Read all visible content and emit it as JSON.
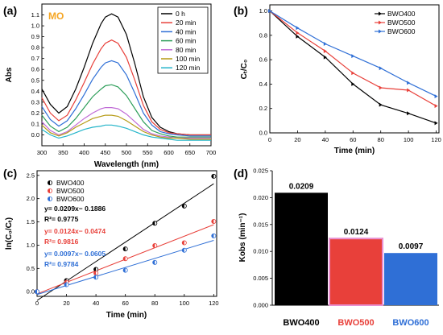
{
  "colors": {
    "axis": "#000000",
    "mo_label": "#f5a623",
    "BWO400": "#000000",
    "BWO500": "#e8403a",
    "BWO600": "#2f6fd6",
    "bar_outline_500": "#e88fd0"
  },
  "chart_data": [
    {
      "panel": "(a)",
      "type": "line",
      "annotation": "MO",
      "xlabel": "Wavelength (nm)",
      "ylabel": "Abs",
      "xlim": [
        300,
        700
      ],
      "ylim": [
        -0.1,
        1.2
      ],
      "xticks": [
        "300",
        "350",
        "400",
        "450",
        "500",
        "550",
        "600",
        "650",
        "700"
      ],
      "yticks": [
        "0.0",
        "0.1",
        "0.2",
        "0.3",
        "0.4",
        "0.5",
        "0.6",
        "0.7",
        "0.8",
        "0.9",
        "1.0",
        "1.1"
      ],
      "legend_position": "top-right",
      "series": [
        {
          "name": "0 h",
          "color": "#000000",
          "x": [
            300,
            320,
            340,
            360,
            380,
            400,
            420,
            440,
            450,
            465,
            480,
            500,
            520,
            540,
            560,
            580,
            600,
            620,
            650,
            700
          ],
          "y": [
            0.42,
            0.28,
            0.2,
            0.26,
            0.42,
            0.62,
            0.84,
            1.02,
            1.08,
            1.11,
            1.08,
            0.92,
            0.65,
            0.35,
            0.16,
            0.07,
            0.03,
            0.01,
            0.0,
            0.0
          ]
        },
        {
          "name": "20 min",
          "color": "#e8403a",
          "x": [
            300,
            320,
            340,
            360,
            380,
            400,
            420,
            440,
            450,
            465,
            480,
            500,
            520,
            540,
            560,
            580,
            600,
            620,
            650,
            700
          ],
          "y": [
            0.34,
            0.2,
            0.13,
            0.18,
            0.32,
            0.48,
            0.65,
            0.79,
            0.84,
            0.87,
            0.84,
            0.71,
            0.5,
            0.27,
            0.12,
            0.05,
            0.02,
            0.01,
            0.0,
            0.0
          ]
        },
        {
          "name": "40 min",
          "color": "#2f6fd6",
          "x": [
            300,
            320,
            340,
            360,
            380,
            400,
            420,
            440,
            450,
            465,
            480,
            500,
            520,
            540,
            560,
            580,
            600,
            620,
            650,
            700
          ],
          "y": [
            0.26,
            0.14,
            0.08,
            0.13,
            0.24,
            0.37,
            0.51,
            0.62,
            0.66,
            0.68,
            0.66,
            0.55,
            0.38,
            0.2,
            0.09,
            0.03,
            0.01,
            0.0,
            -0.01,
            -0.01
          ]
        },
        {
          "name": "60 min",
          "color": "#2e9e5a",
          "x": [
            300,
            320,
            340,
            360,
            380,
            400,
            420,
            440,
            450,
            465,
            480,
            500,
            520,
            540,
            560,
            580,
            600,
            620,
            650,
            700
          ],
          "y": [
            0.18,
            0.08,
            0.03,
            0.07,
            0.15,
            0.25,
            0.35,
            0.42,
            0.45,
            0.46,
            0.44,
            0.36,
            0.24,
            0.12,
            0.04,
            0.01,
            -0.01,
            -0.02,
            -0.02,
            -0.02
          ]
        },
        {
          "name": "80 min",
          "color": "#c06bd6",
          "x": [
            300,
            320,
            340,
            360,
            380,
            400,
            420,
            440,
            450,
            465,
            480,
            500,
            520,
            540,
            560,
            580,
            600,
            620,
            650,
            700
          ],
          "y": [
            0.12,
            0.04,
            0.0,
            0.03,
            0.09,
            0.15,
            0.2,
            0.24,
            0.25,
            0.25,
            0.24,
            0.19,
            0.12,
            0.05,
            0.01,
            -0.01,
            -0.02,
            -0.03,
            -0.03,
            -0.03
          ]
        },
        {
          "name": "100 min",
          "color": "#b59a14",
          "x": [
            300,
            320,
            340,
            360,
            380,
            400,
            420,
            440,
            450,
            465,
            480,
            500,
            520,
            540,
            560,
            580,
            600,
            620,
            650,
            700
          ],
          "y": [
            0.09,
            0.02,
            -0.01,
            0.02,
            0.07,
            0.11,
            0.15,
            0.17,
            0.18,
            0.18,
            0.17,
            0.13,
            0.08,
            0.03,
            0.0,
            -0.02,
            -0.03,
            -0.03,
            -0.04,
            -0.04
          ]
        },
        {
          "name": "120 min",
          "color": "#25b5c9",
          "x": [
            300,
            320,
            340,
            360,
            380,
            400,
            420,
            440,
            450,
            465,
            480,
            500,
            520,
            540,
            560,
            580,
            600,
            620,
            650,
            700
          ],
          "y": [
            0.05,
            0.0,
            -0.03,
            -0.01,
            0.02,
            0.05,
            0.07,
            0.08,
            0.09,
            0.09,
            0.08,
            0.06,
            0.03,
            0.0,
            -0.02,
            -0.03,
            -0.04,
            -0.05,
            -0.05,
            -0.05
          ]
        }
      ]
    },
    {
      "panel": "(b)",
      "type": "line",
      "xlabel": "Time (min)",
      "ylabel": "Cₜ/C₀",
      "xlim": [
        0,
        122
      ],
      "ylim": [
        0.0,
        1.05
      ],
      "xticks": [
        "0",
        "20",
        "40",
        "60",
        "80",
        "100",
        "120"
      ],
      "yticks": [
        "0.0",
        "0.2",
        "0.4",
        "0.6",
        "0.8",
        "1.0"
      ],
      "legend_position": "top-right",
      "x": [
        0,
        20,
        40,
        60,
        80,
        100,
        120
      ],
      "series": [
        {
          "name": "BWO400",
          "values": [
            1.0,
            0.79,
            0.62,
            0.4,
            0.23,
            0.16,
            0.08
          ]
        },
        {
          "name": "BWO500",
          "values": [
            1.0,
            0.82,
            0.67,
            0.49,
            0.37,
            0.35,
            0.22
          ]
        },
        {
          "name": "BWO600",
          "values": [
            1.0,
            0.86,
            0.73,
            0.63,
            0.53,
            0.41,
            0.3
          ]
        }
      ]
    },
    {
      "panel": "(c)",
      "type": "scatter",
      "xlabel": "Time (min)",
      "ylabel": "ln(C₀/Cₜ)",
      "xlim": [
        0,
        122
      ],
      "ylim": [
        -0.1,
        2.6
      ],
      "xticks": [
        "0",
        "20",
        "40",
        "60",
        "80",
        "100",
        "120"
      ],
      "yticks": [
        "0.0",
        "0.5",
        "1.0",
        "1.5",
        "2.0",
        "2.5"
      ],
      "legend_position": "top-left",
      "x": [
        0,
        20,
        40,
        60,
        80,
        100,
        120
      ],
      "series": [
        {
          "name": "BWO400",
          "values": [
            0.0,
            0.24,
            0.48,
            0.92,
            1.47,
            1.84,
            2.48
          ],
          "fit_slope": 0.0209,
          "fit_intercept": -0.1886,
          "equation": "y= 0.0209x− 0.1886",
          "r2": "R²= 0.9775"
        },
        {
          "name": "BWO500",
          "values": [
            0.0,
            0.2,
            0.4,
            0.71,
            0.99,
            1.05,
            1.51
          ],
          "fit_slope": 0.0124,
          "fit_intercept": -0.0474,
          "equation": "y= 0.0124x− 0.0474",
          "r2": "R²= 0.9816"
        },
        {
          "name": "BWO600",
          "values": [
            0.0,
            0.15,
            0.31,
            0.46,
            0.63,
            0.89,
            1.2
          ],
          "fit_slope": 0.0097,
          "fit_intercept": -0.0605,
          "equation": "y= 0.0097x− 0.0605",
          "r2": "R²= 0.9784"
        }
      ]
    },
    {
      "panel": "(d)",
      "type": "bar",
      "ylabel": "Kobs (min⁻¹)",
      "ylim": [
        0.0,
        0.025
      ],
      "yticks": [
        "0.000",
        "0.005",
        "0.010",
        "0.015",
        "0.020",
        "0.025"
      ],
      "categories": [
        "BWO400",
        "BWO500",
        "BWO600"
      ],
      "values": [
        0.0209,
        0.0124,
        0.0097
      ],
      "value_labels": [
        "0.0209",
        "0.0124",
        "0.0097"
      ]
    }
  ]
}
